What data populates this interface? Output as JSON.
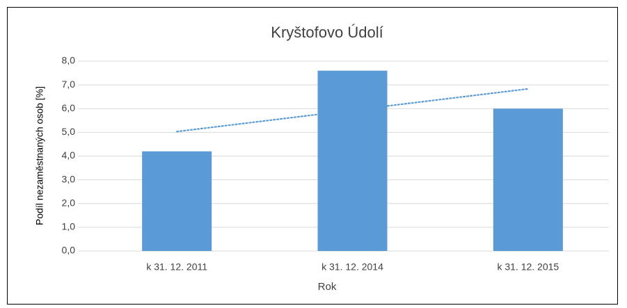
{
  "chart_data": {
    "type": "bar",
    "title": "Kryštofovo Údolí",
    "xlabel": "Rok",
    "ylabel": "Podíl nezaměstnaných osob [%]",
    "categories": [
      "k 31. 12. 2011",
      "k 31. 12. 2014",
      "k 31. 12. 2015"
    ],
    "values": [
      4.2,
      7.6,
      6.0
    ],
    "color": "#5b9bd5",
    "ylim": [
      0,
      8
    ],
    "yticks": [
      {
        "value": 0,
        "label": "0,0"
      },
      {
        "value": 1,
        "label": "1,0"
      },
      {
        "value": 2,
        "label": "2,0"
      },
      {
        "value": 3,
        "label": "3,0"
      },
      {
        "value": 4,
        "label": "4,0"
      },
      {
        "value": 5,
        "label": "5,0"
      },
      {
        "value": 6,
        "label": "6,0"
      },
      {
        "value": 7,
        "label": "7,0"
      },
      {
        "value": 8,
        "label": "8,0"
      }
    ],
    "grid": true,
    "trendline": "linear"
  }
}
